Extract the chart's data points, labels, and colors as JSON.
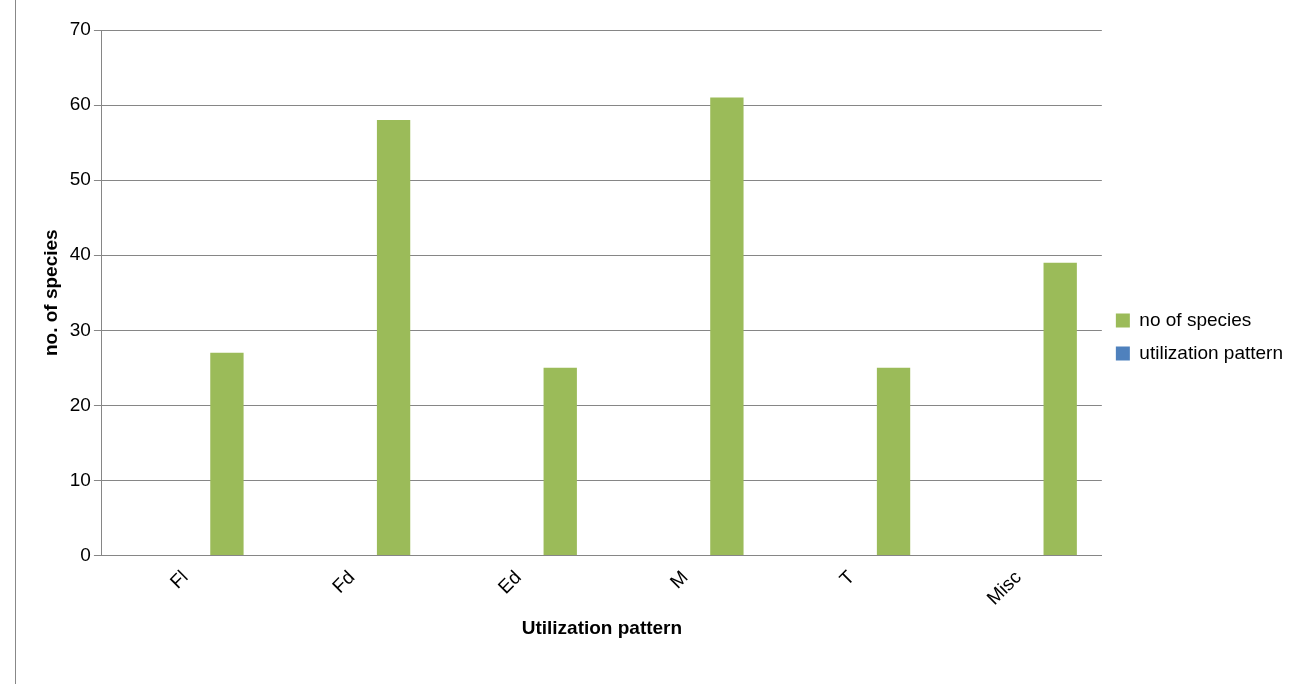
{
  "chart_data": {
    "type": "bar",
    "xlabel": "Utilization pattern",
    "ylabel": "no. of species",
    "categories": [
      "Fl",
      "Fd",
      "Ed",
      "M",
      "T",
      "Misc"
    ],
    "series": [
      {
        "name": "no of species",
        "color": "#9bbb59",
        "values": [
          27,
          58,
          25,
          61,
          25,
          39
        ]
      },
      {
        "name": "utilization pattern",
        "color": "#4f81bd",
        "values": [
          null,
          null,
          null,
          null,
          null,
          null
        ]
      }
    ],
    "ylim": [
      0,
      70
    ],
    "yticks": [
      0,
      10,
      20,
      30,
      40,
      50,
      60,
      70
    ],
    "grid": "y",
    "legend": "right"
  }
}
